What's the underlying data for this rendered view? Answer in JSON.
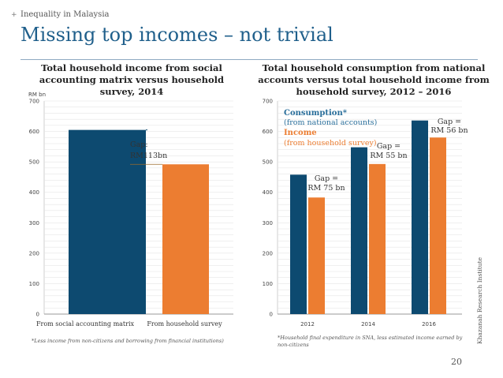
{
  "header": {
    "plus": "+",
    "kicker": "Inequality in Malaysia",
    "title": "Missing top incomes – not trivial"
  },
  "colors": {
    "navy": "#0d4a70",
    "orange": "#ec7d31",
    "title_blue": "#1f5f8b"
  },
  "chart_data": [
    {
      "type": "bar",
      "title": "Total household income from social accounting matrix versus household survey, 2014",
      "ylabel": "RM bn",
      "ylim": [
        0,
        700
      ],
      "yticks": [
        "0",
        "100",
        "200",
        "300",
        "400",
        "500",
        "600",
        "700"
      ],
      "categories": [
        "From social accounting matrix",
        "From household survey"
      ],
      "values": [
        605,
        492
      ],
      "annotation": {
        "line1": "Gap:",
        "line2": "RM113bn"
      },
      "footnote": "*Less income from non-citizens and borrowing from financial institutions)"
    },
    {
      "type": "bar",
      "title": "Total household consumption from national accounts versus total household income from household survey, 2012 – 2016",
      "ylim": [
        0,
        700
      ],
      "yticks": [
        "0",
        "100",
        "200",
        "300",
        "400",
        "500",
        "600",
        "700"
      ],
      "categories": [
        "2012",
        "2014",
        "2016"
      ],
      "series": [
        {
          "name": "Consumption*",
          "sub": "(from national accounts)",
          "values": [
            458,
            548,
            636
          ]
        },
        {
          "name": "Income",
          "sub": "(from household survey)",
          "values": [
            383,
            493,
            580
          ]
        }
      ],
      "gaps": [
        {
          "line1": "Gap =",
          "line2": "RM 75 bn"
        },
        {
          "line1": "Gap =",
          "line2": "RM 55 bn"
        },
        {
          "line1": "Gap =",
          "line2": "RM 56 bn"
        }
      ],
      "footnote": "*Household final expenditure in SNA, less estimated income earned by non-citizens"
    }
  ],
  "side_text": "Khazanah Research Institute",
  "page_number": "20"
}
